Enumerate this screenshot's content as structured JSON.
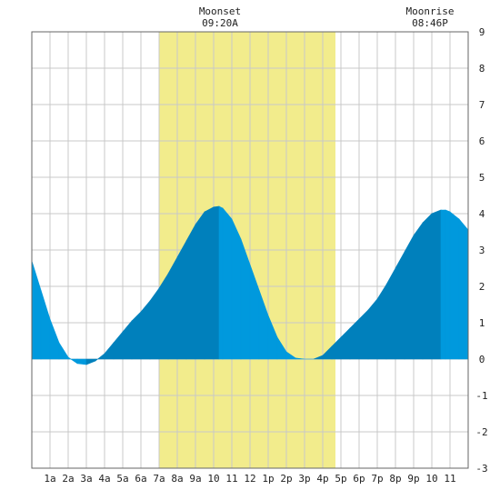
{
  "moon": {
    "moonset_title": "Moonset",
    "moonset_time": "09:20A",
    "moonrise_title": "Moonrise",
    "moonrise_time": "08:46P"
  },
  "chart_data": {
    "type": "area",
    "title": "",
    "xlabel": "",
    "ylabel": "",
    "x_range_hours": [
      0,
      24
    ],
    "ylim": [
      -3,
      9
    ],
    "y_ticks": [
      -3,
      -2,
      -1,
      0,
      1,
      2,
      3,
      4,
      5,
      6,
      7,
      8,
      9
    ],
    "x_tick_labels": [
      "1a",
      "2a",
      "3a",
      "4a",
      "5a",
      "6a",
      "7a",
      "8a",
      "9a",
      "10",
      "11",
      "12",
      "1p",
      "2p",
      "3p",
      "4p",
      "5p",
      "6p",
      "7p",
      "8p",
      "9p",
      "10",
      "11"
    ],
    "grid": true,
    "daylight_span_hours": [
      7.0,
      16.7
    ],
    "tide_extremes": [
      {
        "hour": 3.0,
        "height": -0.15,
        "type": "low"
      },
      {
        "hour": 10.3,
        "height": 4.2,
        "type": "high"
      },
      {
        "hour": 15.5,
        "height": 0.0,
        "type": "low"
      },
      {
        "hour": 22.75,
        "height": 4.1,
        "type": "high"
      }
    ],
    "series": [
      {
        "x": [
          0,
          0.5,
          1,
          1.5,
          2,
          2.5,
          3,
          3.5,
          4,
          4.5,
          5,
          5.5,
          6,
          6.5,
          7,
          7.5,
          8,
          8.5,
          9,
          9.5,
          10,
          10.3,
          10.5,
          11,
          11.5,
          12,
          12.5,
          13,
          13.5,
          14,
          14.5,
          15,
          15.5,
          16,
          16.5,
          17,
          17.5,
          18,
          18.5,
          19,
          19.5,
          20,
          20.5,
          21,
          21.5,
          22,
          22.5,
          22.75,
          23,
          23.5,
          24
        ],
        "y": [
          2.7,
          1.9,
          1.1,
          0.45,
          0.05,
          -0.12,
          -0.15,
          -0.05,
          0.15,
          0.45,
          0.75,
          1.05,
          1.3,
          1.6,
          1.95,
          2.35,
          2.8,
          3.25,
          3.7,
          4.05,
          4.18,
          4.2,
          4.15,
          3.85,
          3.3,
          2.6,
          1.9,
          1.2,
          0.6,
          0.2,
          0.03,
          0.0,
          0.0,
          0.1,
          0.35,
          0.6,
          0.85,
          1.1,
          1.35,
          1.65,
          2.05,
          2.5,
          2.95,
          3.4,
          3.75,
          4.0,
          4.1,
          4.1,
          4.05,
          3.85,
          3.55
        ]
      }
    ],
    "colors": {
      "daylight": "#f2ec8c",
      "tide_dark": "#0080bc",
      "tide_light": "#0099dd",
      "grid": "#c8c8c8",
      "frame": "#666666"
    }
  }
}
